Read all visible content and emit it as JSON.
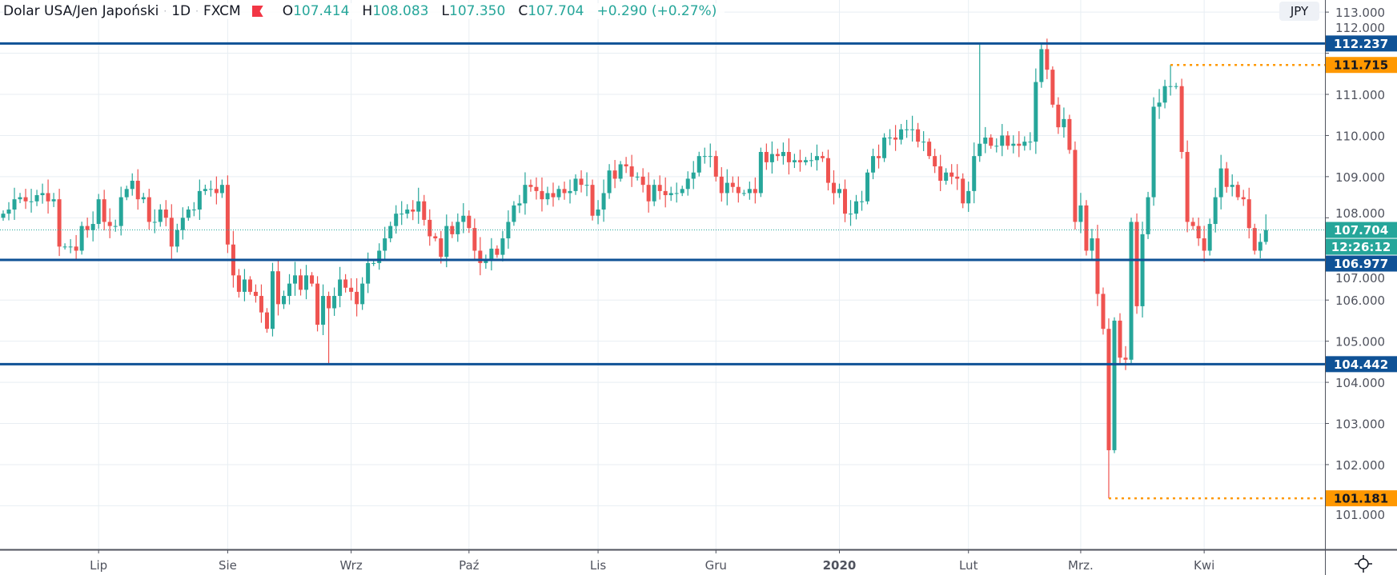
{
  "header": {
    "symbol": "Dolar USA/Jen Japoński",
    "sep": "·",
    "interval": "1D",
    "exchange": "FXCM",
    "open_label": "O",
    "open": "107.414",
    "high_label": "H",
    "high": "108.083",
    "low_label": "L",
    "low": "107.350",
    "close_label": "C",
    "close": "107.704",
    "change": "+0.290 (+0.27%)"
  },
  "currency": "JPY",
  "colors": {
    "up": "#26a69a",
    "down": "#ef5350",
    "level": "#0f5296",
    "marker": "#ff9800",
    "grid": "#e8eef3",
    "axis": "#50535e"
  },
  "chart_data": {
    "type": "candlestick",
    "title": "Dolar USA/Jen Japoński · 1D · FXCM",
    "ylim": [
      100.2,
      113.0
    ],
    "y_ticks": [
      101,
      102,
      103,
      104,
      105,
      106,
      107,
      108,
      109,
      110,
      111,
      112,
      113
    ],
    "y_tick_labels": [
      "101.000",
      "102.000",
      "103.000",
      "104.000",
      "105.000",
      "106.000",
      "107.000",
      "108.000",
      "109.000",
      "110.000",
      "111.000",
      "112.000",
      "113.000"
    ],
    "x_labels": [
      {
        "label": "Lip",
        "at_index": 17
      },
      {
        "label": "Sie",
        "at_index": 40
      },
      {
        "label": "Wrz",
        "at_index": 62
      },
      {
        "label": "Paź",
        "at_index": 83
      },
      {
        "label": "Lis",
        "at_index": 106
      },
      {
        "label": "Gru",
        "at_index": 127
      },
      {
        "label": "2020",
        "at_index": 149
      },
      {
        "label": "Lut",
        "at_index": 172
      },
      {
        "label": "Mrz.",
        "at_index": 192
      },
      {
        "label": "Kwi",
        "at_index": 214
      }
    ],
    "first_open": 108.0,
    "closes": [
      108.1,
      108.2,
      108.45,
      108.5,
      108.4,
      108.4,
      108.55,
      108.6,
      108.4,
      108.45,
      107.3,
      107.3,
      107.3,
      107.2,
      107.8,
      107.7,
      107.85,
      108.45,
      107.9,
      107.8,
      107.8,
      108.5,
      108.7,
      108.9,
      108.45,
      108.5,
      107.9,
      107.9,
      108.2,
      108.0,
      107.3,
      107.7,
      108.0,
      108.2,
      108.2,
      108.65,
      108.7,
      108.7,
      108.6,
      108.8,
      107.35,
      106.6,
      106.2,
      106.5,
      106.2,
      106.1,
      105.7,
      105.3,
      106.7,
      105.9,
      106.1,
      106.4,
      106.6,
      106.25,
      106.6,
      106.4,
      105.4,
      106.1,
      105.8,
      106.1,
      106.5,
      106.3,
      106.2,
      105.9,
      106.4,
      106.9,
      106.9,
      107.2,
      107.5,
      107.8,
      108.1,
      108.1,
      108.2,
      108.15,
      108.4,
      107.95,
      107.55,
      107.5,
      107.05,
      107.8,
      107.6,
      107.9,
      108.05,
      107.75,
      107.2,
      106.9,
      106.95,
      107.25,
      107.1,
      107.5,
      107.9,
      108.3,
      108.35,
      108.8,
      108.75,
      108.65,
      108.45,
      108.6,
      108.5,
      108.7,
      108.6,
      108.65,
      108.95,
      108.8,
      108.8,
      108.05,
      108.2,
      108.6,
      109.15,
      108.95,
      109.3,
      109.25,
      109.0,
      109.0,
      108.8,
      108.4,
      108.8,
      108.65,
      108.55,
      108.6,
      108.6,
      108.7,
      108.95,
      109.1,
      109.5,
      109.5,
      109.5,
      109.0,
      108.6,
      108.85,
      108.75,
      108.6,
      108.6,
      108.7,
      108.6,
      109.6,
      109.35,
      109.55,
      109.5,
      109.6,
      109.35,
      109.4,
      109.35,
      109.4,
      109.4,
      109.5,
      109.45,
      108.85,
      108.6,
      108.7,
      108.1,
      108.1,
      108.4,
      108.4,
      109.1,
      109.5,
      109.45,
      109.95,
      109.95,
      109.9,
      110.15,
      110.15,
      110.15,
      109.85,
      109.85,
      109.5,
      109.25,
      108.9,
      109.1,
      109.0,
      108.95,
      108.35,
      108.65,
      109.5,
      109.8,
      109.95,
      109.75,
      109.75,
      110.0,
      109.75,
      109.8,
      109.75,
      109.85,
      109.85,
      111.3,
      112.1,
      111.6,
      110.75,
      110.2,
      110.4,
      109.65,
      107.9,
      108.3,
      107.2,
      107.5,
      106.15,
      105.3,
      102.35,
      105.5,
      104.6,
      104.55,
      107.9,
      105.85,
      107.6,
      108.5,
      110.7,
      110.8,
      111.2,
      111.2,
      111.2,
      109.6,
      107.9,
      107.8,
      107.5,
      107.2,
      107.85,
      108.5,
      109.2,
      108.75,
      108.8,
      108.5,
      108.45,
      107.75,
      107.2,
      107.414,
      107.704
    ],
    "overrides": [
      {
        "index": 58,
        "low": 104.442
      },
      {
        "index": 174,
        "high": 112.237
      },
      {
        "index": 197,
        "low": 101.181
      },
      {
        "index": 208,
        "high": 111.715
      },
      {
        "index": 225,
        "high": 108.083,
        "low": 107.35
      }
    ],
    "levels": [
      {
        "value": 112.237,
        "label": "112.237",
        "style": "solid"
      },
      {
        "value": 106.977,
        "label": "106.977",
        "style": "solid"
      },
      {
        "value": 104.442,
        "label": "104.442",
        "style": "solid"
      }
    ],
    "markers": [
      {
        "value": 111.715,
        "label": "111.715",
        "from_index": 208
      },
      {
        "value": 101.181,
        "label": "101.181",
        "from_index": 197
      }
    ],
    "last_price": {
      "value": 107.704,
      "label": "107.704",
      "countdown": "12:26:12"
    }
  }
}
